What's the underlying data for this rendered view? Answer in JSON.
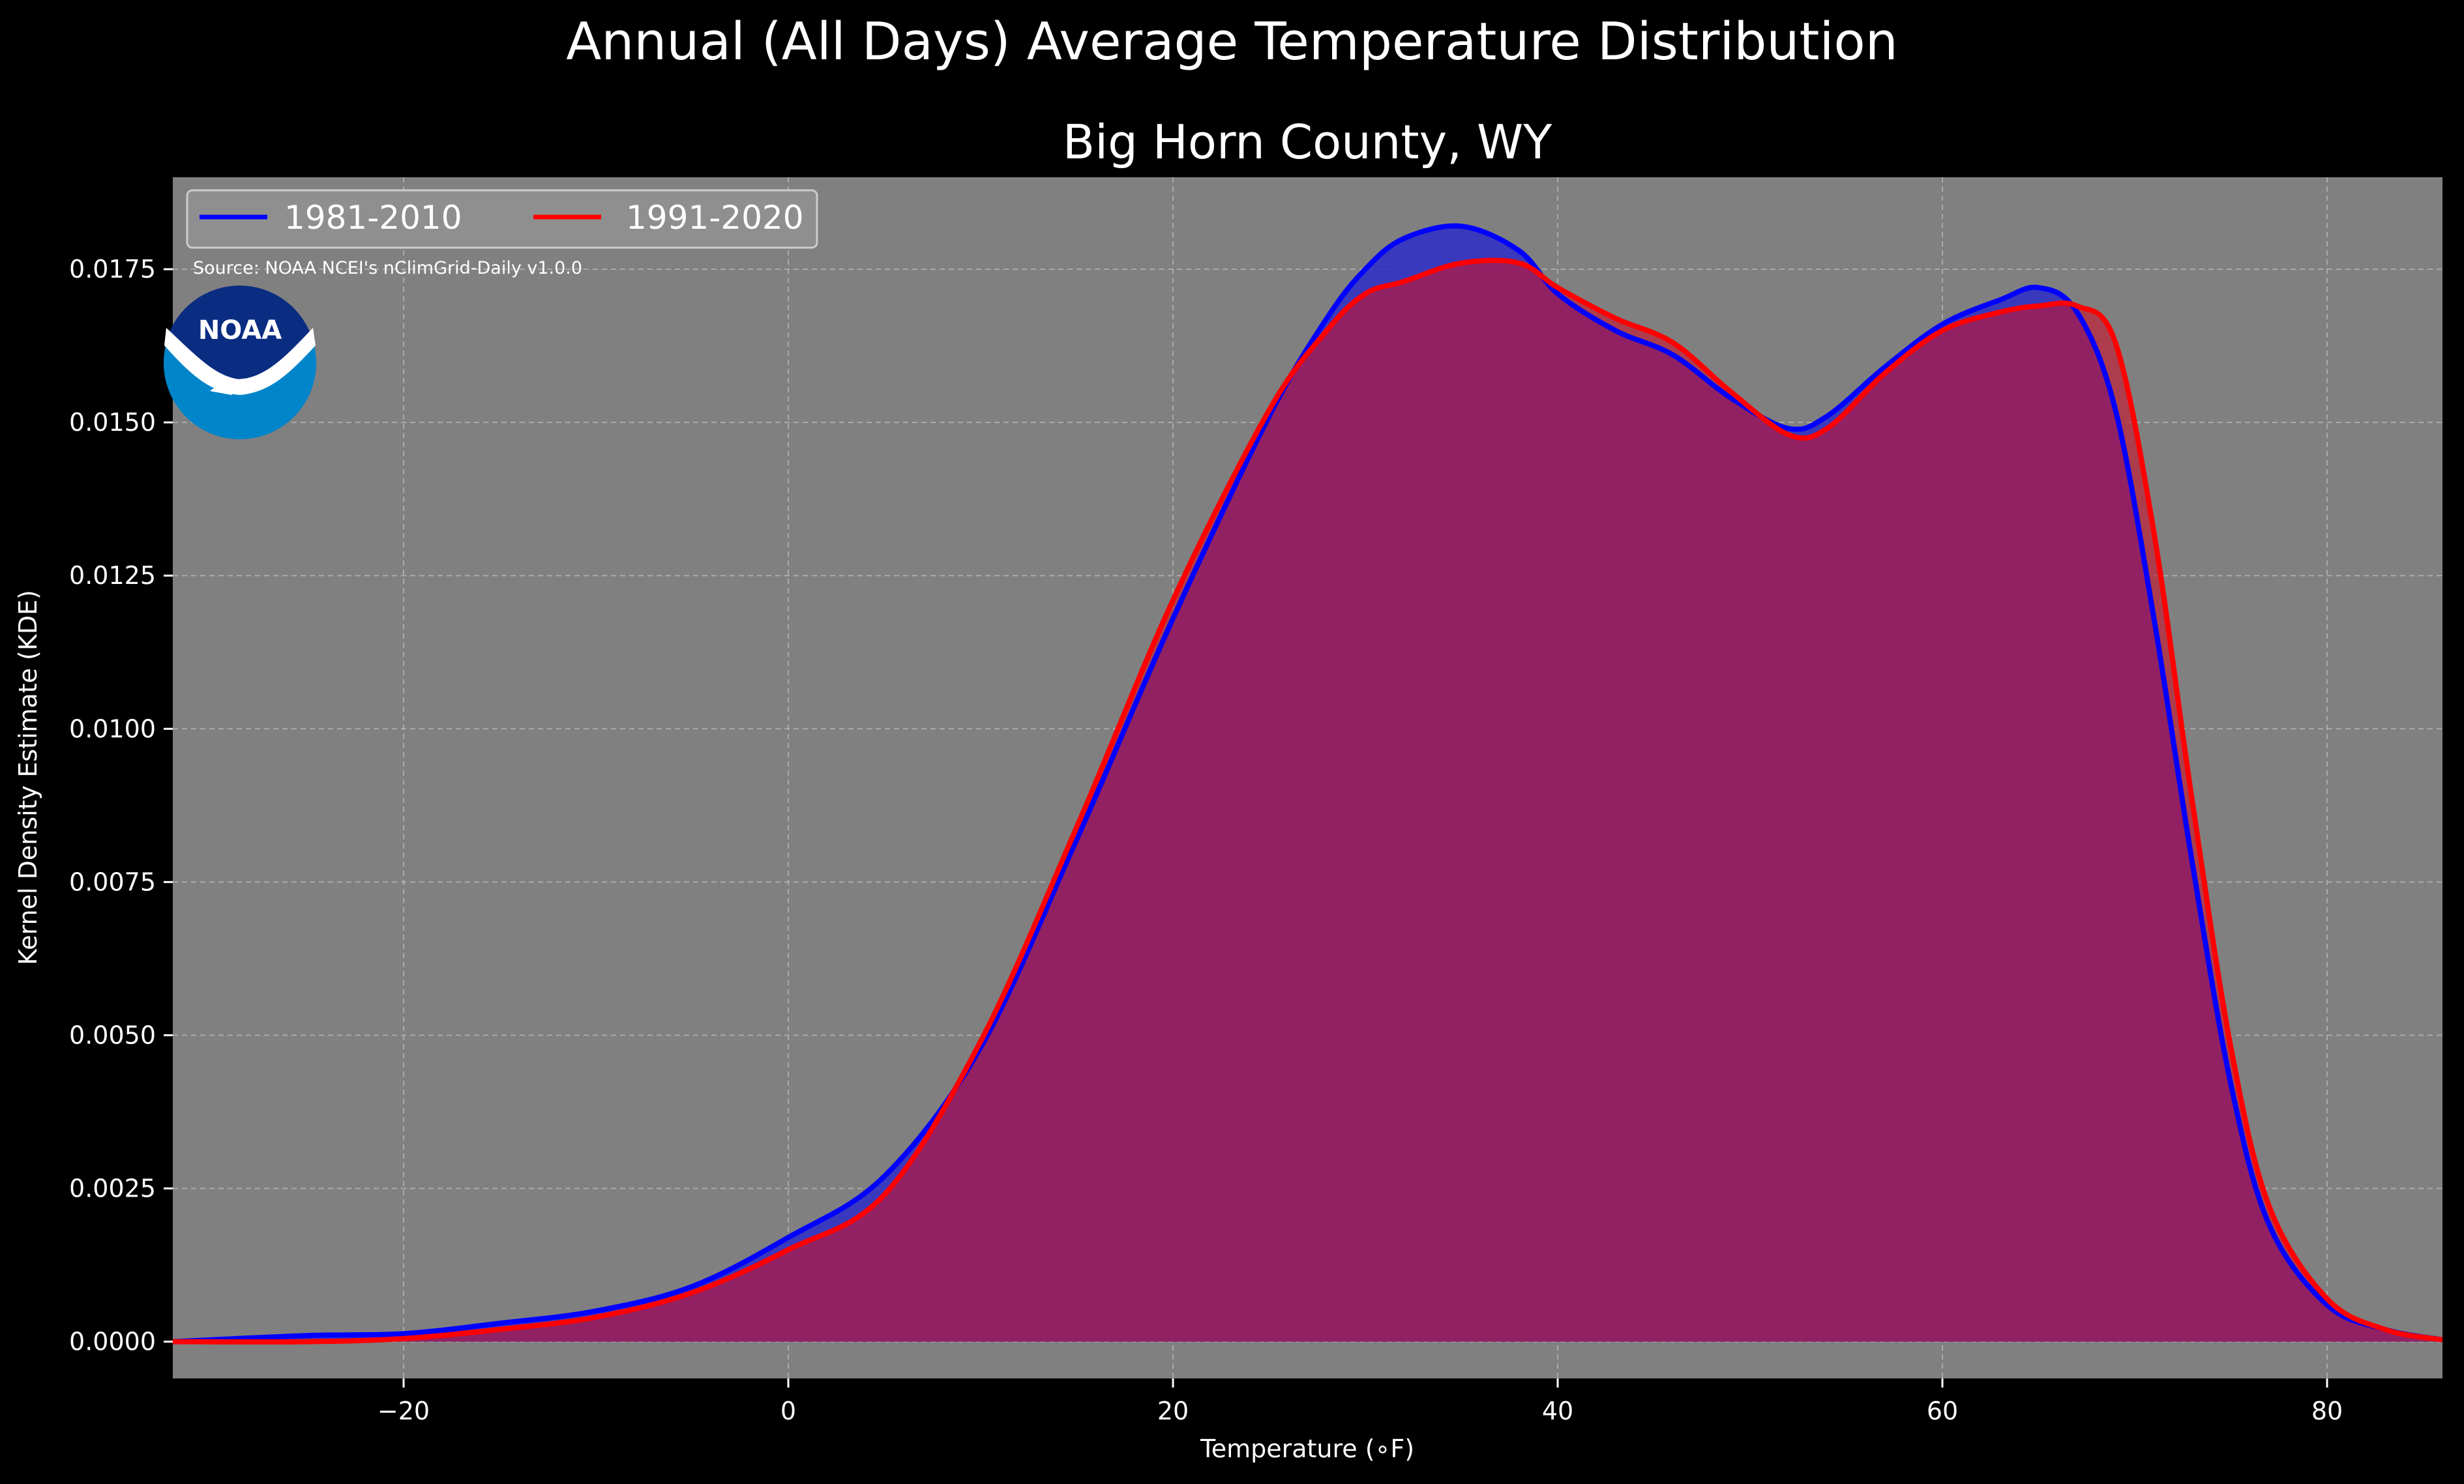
{
  "figure": {
    "suptitle": "Annual (All Days) Average Temperature Distribution",
    "source_note": "Source: NOAA NCEI's nClimGrid-Daily v1.0.0",
    "logo_text": "NOAA"
  },
  "colors": {
    "background": "#000000",
    "plot_bg": "#808080",
    "series_1981": "#0000ff",
    "series_1991": "#ff0000",
    "overlap_fill": "#9c1e5c"
  },
  "chart_data": {
    "type": "area",
    "title": "Big Horn County, WY",
    "xlabel": "Temperature (∘F)",
    "ylabel": "Kernel Density Estimate (KDE)",
    "xlim": [
      -32,
      86
    ],
    "ylim": [
      -0.0006,
      0.019
    ],
    "xticks": [
      -20,
      0,
      20,
      40,
      60,
      80
    ],
    "xtick_labels": [
      "−20",
      "0",
      "20",
      "40",
      "60",
      "80"
    ],
    "yticks": [
      0.0,
      0.0025,
      0.005,
      0.0075,
      0.01,
      0.0125,
      0.015,
      0.0175
    ],
    "ytick_labels": [
      "0.0000",
      "0.0025",
      "0.0050",
      "0.0075",
      "0.0100",
      "0.0125",
      "0.0150",
      "0.0175"
    ],
    "grid": true,
    "legend": {
      "placement": "top-left",
      "columns": 2
    },
    "series": [
      {
        "name": "1981-2010",
        "x": [
          -32,
          -25,
          -20,
          -15,
          -10,
          -5,
          0,
          5,
          10,
          15,
          20,
          25,
          28,
          30,
          32,
          35,
          38,
          40,
          43,
          46,
          49,
          52,
          54,
          57,
          60,
          63,
          65,
          67,
          69,
          71,
          73,
          75,
          77,
          80,
          83,
          86
        ],
        "y": [
          0.0,
          0.0001,
          0.00013,
          0.0003,
          0.0005,
          0.0009,
          0.0017,
          0.0027,
          0.0048,
          0.0082,
          0.0118,
          0.0151,
          0.0167,
          0.0175,
          0.018,
          0.0182,
          0.0178,
          0.0171,
          0.0165,
          0.0161,
          0.0154,
          0.0149,
          0.0151,
          0.0159,
          0.0166,
          0.017,
          0.0172,
          0.0168,
          0.0152,
          0.0118,
          0.0078,
          0.0042,
          0.0019,
          0.0006,
          0.0002,
          3e-05
        ]
      },
      {
        "name": "1991-2020",
        "x": [
          -32,
          -25,
          -20,
          -15,
          -10,
          -5,
          0,
          5,
          10,
          15,
          20,
          25,
          28,
          30,
          32,
          35,
          38,
          40,
          43,
          46,
          49,
          52,
          54,
          57,
          60,
          63,
          65,
          67,
          69,
          71,
          73,
          75,
          77,
          80,
          83,
          86
        ],
        "y": [
          0.0,
          0.0,
          5e-05,
          0.0002,
          0.0004,
          0.0008,
          0.0015,
          0.0024,
          0.0049,
          0.0084,
          0.0121,
          0.0152,
          0.0165,
          0.0171,
          0.0173,
          0.0176,
          0.0176,
          0.0172,
          0.0167,
          0.0163,
          0.0155,
          0.0148,
          0.0149,
          0.0158,
          0.0165,
          0.0168,
          0.0169,
          0.0169,
          0.0163,
          0.0132,
          0.0088,
          0.0048,
          0.0022,
          0.0007,
          0.0002,
          3e-05
        ]
      }
    ]
  }
}
